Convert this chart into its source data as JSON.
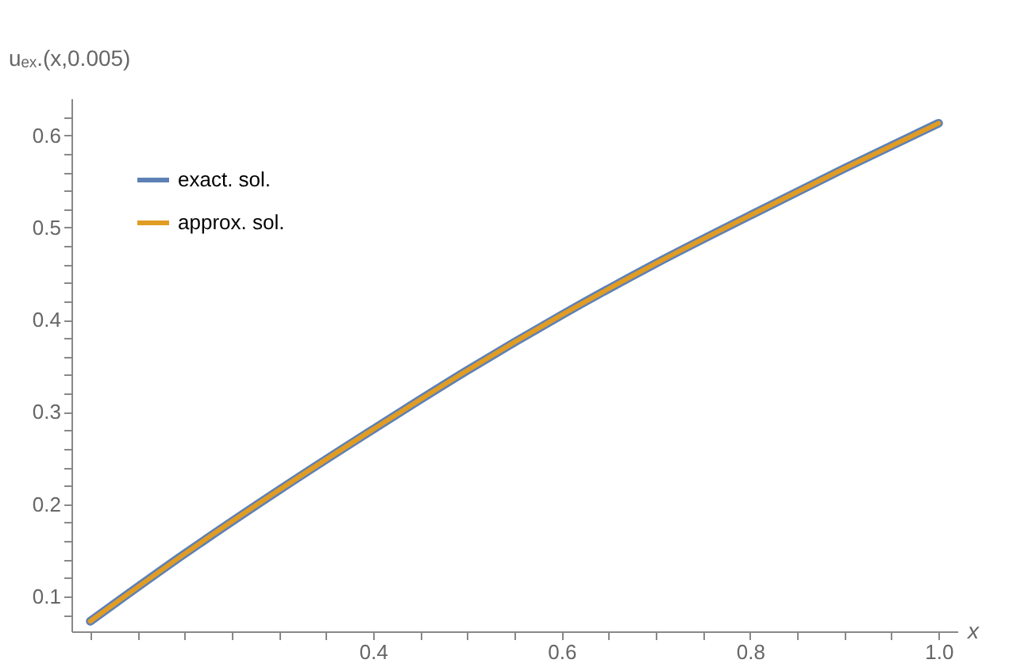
{
  "chart_data": {
    "type": "line",
    "xlabel": "x",
    "ylabel": "uₑₓ.(x,0.005)",
    "x": [
      0.1,
      0.2,
      0.3,
      0.4,
      0.5,
      0.6,
      0.7,
      0.8,
      0.9,
      1.0
    ],
    "series": [
      {
        "name": "exact. sol.",
        "color": "#5e81b5",
        "values": [
          0.073,
          0.146,
          0.215,
          0.281,
          0.345,
          0.405,
          0.461,
          0.513,
          0.564,
          0.613
        ]
      },
      {
        "name": "approx. sol.",
        "color": "#e19c24",
        "values": [
          0.073,
          0.146,
          0.215,
          0.281,
          0.345,
          0.405,
          0.461,
          0.513,
          0.564,
          0.613
        ]
      }
    ],
    "xlim": [
      0.08,
      1.02
    ],
    "ylim": [
      0.062,
      0.64
    ],
    "xticks": [
      {
        "value": 0.1,
        "label": null
      },
      {
        "value": 0.15,
        "label": null
      },
      {
        "value": 0.2,
        "label": null
      },
      {
        "value": 0.25,
        "label": null
      },
      {
        "value": 0.3,
        "label": null
      },
      {
        "value": 0.35,
        "label": null
      },
      0.4,
      {
        "value": 0.45,
        "label": null
      },
      {
        "value": 0.5,
        "label": null
      },
      {
        "value": 0.55,
        "label": null
      },
      0.6,
      {
        "value": 0.65,
        "label": null
      },
      {
        "value": 0.7,
        "label": null
      },
      {
        "value": 0.75,
        "label": null
      },
      0.8,
      {
        "value": 0.85,
        "label": null
      },
      {
        "value": 0.9,
        "label": null
      },
      {
        "value": 0.95,
        "label": null
      },
      {
        "value": 1,
        "label": "1.0"
      }
    ],
    "yticks": [
      {
        "value": 0.08,
        "label": null
      },
      0.1,
      {
        "value": 0.12,
        "label": null
      },
      {
        "value": 0.14,
        "label": null
      },
      {
        "value": 0.16,
        "label": null
      },
      {
        "value": 0.18,
        "label": null
      },
      0.2,
      {
        "value": 0.22,
        "label": null
      },
      {
        "value": 0.24,
        "label": null
      },
      {
        "value": 0.26,
        "label": null
      },
      {
        "value": 0.28,
        "label": null
      },
      0.3,
      {
        "value": 0.32,
        "label": null
      },
      {
        "value": 0.34,
        "label": null
      },
      {
        "value": 0.36,
        "label": null
      },
      {
        "value": 0.38,
        "label": null
      },
      0.4,
      {
        "value": 0.42,
        "label": null
      },
      {
        "value": 0.44,
        "label": null
      },
      {
        "value": 0.46,
        "label": null
      },
      {
        "value": 0.48,
        "label": null
      },
      0.5,
      {
        "value": 0.52,
        "label": null
      },
      {
        "value": 0.54,
        "label": null
      },
      {
        "value": 0.56,
        "label": null
      },
      {
        "value": 0.58,
        "label": null
      },
      0.6,
      {
        "value": 0.62,
        "label": null
      }
    ],
    "grid": false,
    "legend": "top left",
    "line_style": "solid",
    "marker": "none"
  }
}
